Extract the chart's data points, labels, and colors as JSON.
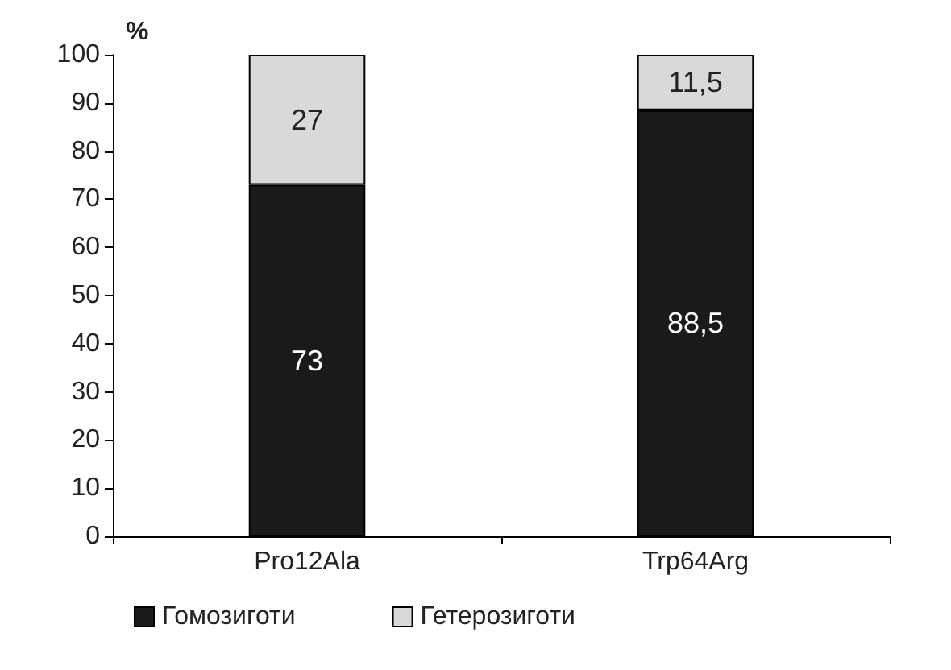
{
  "chart_data": {
    "type": "bar",
    "stacked": true,
    "ylabel": "%",
    "categories": [
      "Pro12Ala",
      "Trp64Arg"
    ],
    "series": [
      {
        "name": "Гомозиготи",
        "color": "#1a1a1a",
        "values": [
          73,
          88.5
        ],
        "value_labels": [
          "73",
          "88,5"
        ]
      },
      {
        "name": "Гетерозиготи",
        "color": "#d9d9d9",
        "values": [
          27,
          11.5
        ],
        "value_labels": [
          "27",
          "11,5"
        ]
      }
    ],
    "ylim": [
      0,
      100
    ],
    "yticks": [
      0,
      10,
      20,
      30,
      40,
      50,
      60,
      70,
      80,
      90,
      100
    ],
    "grid": false,
    "legend": "bottom"
  }
}
